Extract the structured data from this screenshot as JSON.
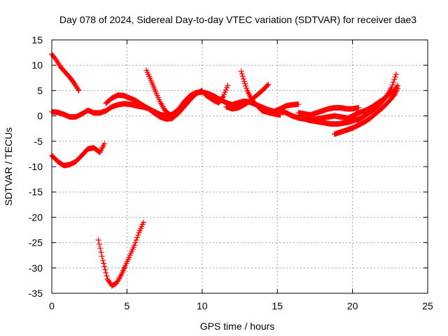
{
  "chart_data": {
    "type": "scatter",
    "title": "Day 078 of 2024, Sidereal Day-to-day VTEC variation (SDTVAR) for receiver dae3",
    "xlabel": "GPS time / hours",
    "ylabel": "SDTVAR / TECUs",
    "xlim": [
      0,
      25
    ],
    "ylim": [
      -35,
      15
    ],
    "xticks": [
      "0",
      "5",
      "10",
      "15",
      "20",
      "25"
    ],
    "yticks": [
      "15",
      "10",
      "5",
      "0",
      "-5",
      "-10",
      "-15",
      "-20",
      "-25",
      "-30",
      "-35"
    ],
    "grid": true,
    "marker": "plus",
    "color": "#ff0000",
    "series": [
      {
        "x": [
          0,
          0.3,
          0.6,
          0.9,
          1.2,
          1.5,
          1.8
        ],
        "y": [
          12.2,
          11,
          9.6,
          8.6,
          7.6,
          6.4,
          5
        ]
      },
      {
        "x": [
          0,
          0.4,
          0.8,
          1.2,
          1.6,
          2.0,
          2.4,
          2.8,
          3.2,
          3.6,
          4.0,
          4.4,
          4.8,
          5.2,
          5.6,
          6.0,
          6.4,
          6.8,
          7.2,
          7.6,
          8.0,
          8.4,
          8.8,
          9.2,
          9.6,
          10.0,
          10.4,
          10.8,
          11.2,
          11.6,
          12.0,
          12.4,
          12.8,
          13.2,
          13.6,
          14.0,
          14.4,
          14.8,
          15.2,
          15.6,
          16.0,
          16.4
        ],
        "y": [
          0.8,
          0.7,
          0.3,
          -0.2,
          -0.2,
          0.4,
          1.1,
          0.6,
          0.6,
          1.0,
          1.8,
          2.2,
          2.4,
          2.3,
          2.0,
          1.8,
          1.5,
          0.9,
          0.3,
          0.0,
          0.3,
          1.2,
          2.8,
          4.0,
          4.6,
          4.7,
          4.4,
          3.9,
          3.2,
          2.6,
          2.2,
          2.6,
          2.9,
          2.7,
          2.2,
          1.7,
          1.2,
          0.9,
          1.4,
          2.0,
          2.2,
          2.3
        ]
      },
      {
        "x": [
          3.6,
          4.0,
          4.4,
          4.8,
          5.2,
          5.6,
          6.0,
          6.4,
          6.8,
          7.2,
          7.6,
          8.0,
          8.4,
          8.8,
          9.2,
          9.6,
          10.0
        ],
        "y": [
          2.5,
          3.5,
          4.1,
          4.0,
          3.5,
          3.0,
          2.2,
          1.5,
          0.6,
          -0.2,
          -0.6,
          -0.5,
          0.5,
          1.8,
          3.2,
          4.4,
          5.0
        ]
      },
      {
        "x": [
          6.3,
          6.6,
          6.9,
          7.2,
          7.5,
          7.8,
          8.1,
          8.4
        ],
        "y": [
          9.0,
          7.0,
          4.8,
          2.8,
          1.2,
          0.3,
          0.2,
          0.5
        ]
      },
      {
        "x": [
          0,
          0.4,
          0.8,
          1.2,
          1.6,
          2.0,
          2.4,
          2.8,
          3.2,
          3.5
        ],
        "y": [
          -7.8,
          -9.0,
          -9.8,
          -9.6,
          -9.0,
          -7.8,
          -6.5,
          -6.3,
          -7.2,
          -5.5
        ]
      },
      {
        "x": [
          3.1,
          3.4,
          3.7,
          4.0,
          4.3,
          4.6,
          4.9,
          5.2,
          5.5,
          5.8,
          6.1
        ],
        "y": [
          -24.5,
          -28.5,
          -32.2,
          -33.5,
          -33.0,
          -31.5,
          -29.5,
          -27.5,
          -25.5,
          -23.0,
          -21.0
        ]
      },
      {
        "x": [
          10.2,
          10.5,
          10.8,
          11.1,
          11.4,
          11.7
        ],
        "y": [
          4.2,
          3.6,
          3.0,
          2.6,
          3.8,
          6.0
        ]
      },
      {
        "x": [
          12.6,
          12.8,
          13.0,
          13.2,
          13.4,
          13.6,
          13.8,
          14.0,
          14.4,
          14.8,
          15.2
        ],
        "y": [
          8.8,
          6.8,
          5.0,
          3.8,
          2.8,
          2.2,
          1.6,
          1.0,
          0.7,
          0.4,
          0.2
        ]
      },
      {
        "x": [
          11.6,
          12.0,
          12.4,
          12.8,
          13.2,
          13.6,
          14.0,
          14.4
        ],
        "y": [
          1.8,
          1.4,
          1.6,
          2.2,
          3.0,
          4.0,
          5.0,
          6.2
        ]
      },
      {
        "x": [
          15.2,
          15.6,
          16.0,
          16.4,
          16.8,
          17.2,
          17.6,
          18.0,
          18.4,
          18.8,
          19.2,
          19.6,
          20.0,
          20.4
        ],
        "y": [
          1.0,
          0.6,
          0.0,
          -0.4,
          -0.6,
          -0.8,
          -0.6,
          -0.4,
          -0.2,
          0.0,
          -0.2,
          -0.4,
          -0.6,
          -0.8
        ]
      },
      {
        "x": [
          16.4,
          16.8,
          17.2,
          17.6,
          18.0,
          18.4,
          18.8,
          19.2,
          19.6,
          20.0,
          20.4
        ],
        "y": [
          0.6,
          0.4,
          0.2,
          0.6,
          1.0,
          1.4,
          1.6,
          1.6,
          1.4,
          1.4,
          1.6
        ]
      },
      {
        "x": [
          17.0,
          17.4,
          17.8,
          18.2,
          18.6,
          19.0,
          19.4,
          19.8,
          20.2,
          20.6,
          21.0,
          21.4,
          21.8,
          22.2,
          22.6,
          22.9
        ],
        "y": [
          -0.8,
          -1.0,
          -1.2,
          -1.4,
          -1.6,
          -1.6,
          -1.4,
          -1.2,
          -0.8,
          -0.4,
          0.4,
          1.2,
          2.2,
          3.6,
          5.6,
          8.2
        ]
      },
      {
        "x": [
          18.8,
          19.2,
          19.6,
          20.0,
          20.4,
          20.8,
          21.2,
          21.6,
          22.0,
          22.4,
          22.8,
          23.0
        ],
        "y": [
          -3.6,
          -3.2,
          -2.8,
          -2.4,
          -1.8,
          -1.2,
          -0.4,
          0.6,
          1.6,
          2.8,
          4.2,
          5.4
        ]
      },
      {
        "x": [
          19.6,
          20.0,
          20.4,
          20.8,
          21.2,
          21.6,
          22.0,
          22.4,
          22.8,
          23.0
        ],
        "y": [
          -0.6,
          0.0,
          0.6,
          1.0,
          1.6,
          2.4,
          3.2,
          4.2,
          5.0,
          6.0
        ]
      }
    ]
  }
}
